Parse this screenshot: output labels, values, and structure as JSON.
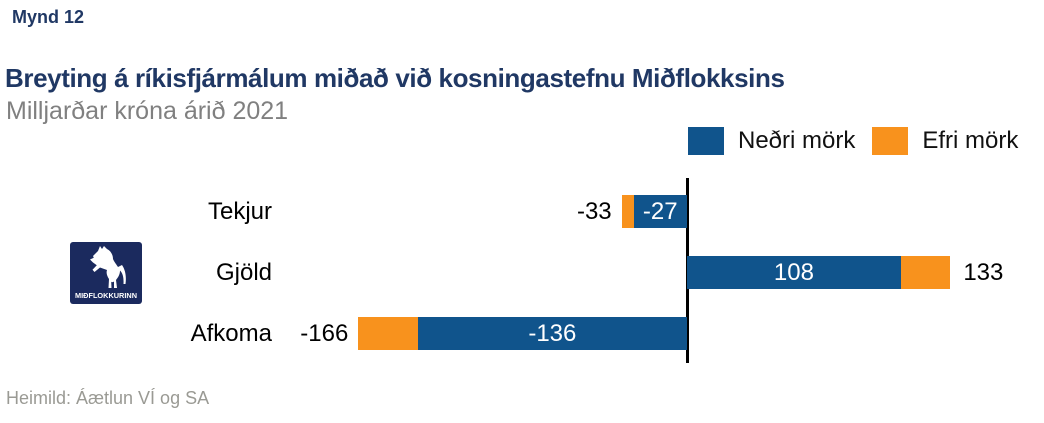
{
  "figure_label": "Mynd 12",
  "title": "Breyting á ríkisfjármálum miðað við kosningastefnu Miðflokksins",
  "subtitle": "Milljarðar króna árið 2021",
  "source_note": "Heimild: Áætlun VÍ og SA",
  "logo": {
    "text": "MIÐFLOKKURINN",
    "icon": "horse-icon",
    "background_color": "#1B2A5E",
    "foreground_color": "#FFFFFF"
  },
  "colors": {
    "lower_bound_blue": "#10548C",
    "upper_bound_orange": "#F8921D",
    "title_navy": "#203864",
    "subtitle_gray": "#808080",
    "source_gray": "#9A9A94",
    "axis_black": "#000000",
    "inside_label_white": "#FFFFFF",
    "outside_label_black": "#000000"
  },
  "legend": [
    {
      "label": "Neðri mörk",
      "color": "#10548C"
    },
    {
      "label": "Efri mörk",
      "color": "#F8921D"
    }
  ],
  "chart_data": {
    "type": "bar",
    "orientation": "horizontal",
    "title": "Breyting á ríkisfjármálum miðað við kosningastefnu Miðflokksins",
    "subtitle": "Milljarðar króna árið 2021",
    "unit": "Milljarðar króna",
    "year": "2021",
    "categories": [
      "Tekjur",
      "Gjöld",
      "Afkoma"
    ],
    "series": [
      {
        "name": "Neðri mörk",
        "values": [
          -27,
          108,
          -136
        ],
        "color": "#10548C",
        "label_position": "inside-bar",
        "label_color": "#FFFFFF"
      },
      {
        "name": "Efri mörk",
        "values": [
          -33,
          133,
          -166
        ],
        "color": "#F8921D",
        "label_position": "outside-bar",
        "label_color": "#000000",
        "note": "orange segment spans from Neðri mörk value to Efri mörk value"
      }
    ],
    "x_axis": {
      "zero_line": true,
      "gridlines": false,
      "tick_labels": [],
      "approx_range": [
        -180,
        180
      ]
    },
    "legend_position": "top-right",
    "bar_value_labels": {
      "Tekjur": {
        "inside": "-27",
        "outside": "-33"
      },
      "Gjöld": {
        "inside": "108",
        "outside": "133"
      },
      "Afkoma": {
        "inside": "-136",
        "outside": "-166"
      }
    }
  }
}
